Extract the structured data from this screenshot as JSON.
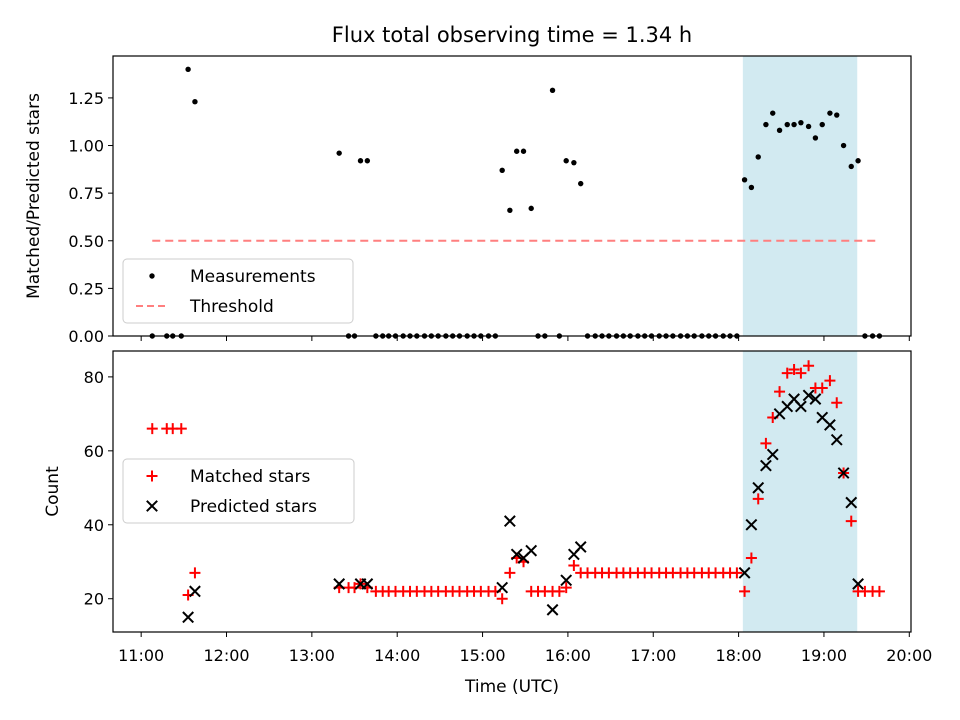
{
  "chart_data": {
    "type": "scatter",
    "title": "Flux total observing time = 1.34 h",
    "xlabel": "Time (UTC)",
    "x_unit": "decimal hours UTC",
    "x_ticks": [
      {
        "value": 11,
        "label": "11:00"
      },
      {
        "value": 12,
        "label": "12:00"
      },
      {
        "value": 13,
        "label": "13:00"
      },
      {
        "value": 14,
        "label": "14:00"
      },
      {
        "value": 15,
        "label": "15:00"
      },
      {
        "value": 16,
        "label": "16:00"
      },
      {
        "value": 17,
        "label": "17:00"
      },
      {
        "value": 18,
        "label": "18:00"
      },
      {
        "value": 19,
        "label": "19:00"
      },
      {
        "value": 20,
        "label": "20:00"
      }
    ],
    "xlim": [
      10.67,
      20.02
    ],
    "highlight_span": [
      18.05,
      19.39
    ],
    "highlight_color": "#add8e6",
    "panels": [
      {
        "ylabel": "Matched/Predicted stars",
        "ylim": [
          0,
          1.47
        ],
        "y_ticks": [
          {
            "value": 0,
            "label": "0.00"
          },
          {
            "value": 0.25,
            "label": "0.25"
          },
          {
            "value": 0.5,
            "label": "0.50"
          },
          {
            "value": 0.75,
            "label": "0.75"
          },
          {
            "value": 1.0,
            "label": "1.00"
          },
          {
            "value": 1.25,
            "label": "1.25"
          }
        ],
        "legend_position": "lower-left",
        "legend": [
          {
            "label": "Measurements",
            "marker": "dot",
            "color": "#000000"
          },
          {
            "label": "Threshold",
            "marker": "dash",
            "color": "#ff7f7f"
          }
        ],
        "threshold": {
          "name": "Threshold",
          "y": 0.5,
          "x_start": 11.13,
          "x_end": 19.62,
          "color": "#ff7f7f"
        },
        "series": [
          {
            "name": "Measurements",
            "marker": "dot",
            "color": "#000000",
            "points": [
              [
                11.13,
                0
              ],
              [
                11.3,
                0
              ],
              [
                11.37,
                0
              ],
              [
                11.47,
                0
              ],
              [
                11.55,
                1.4
              ],
              [
                11.63,
                1.23
              ],
              [
                13.32,
                0.96
              ],
              [
                13.43,
                0
              ],
              [
                13.5,
                0
              ],
              [
                13.57,
                0.92
              ],
              [
                13.65,
                0.92
              ],
              [
                13.75,
                0
              ],
              [
                13.83,
                0
              ],
              [
                13.9,
                0
              ],
              [
                13.98,
                0
              ],
              [
                14.07,
                0
              ],
              [
                14.15,
                0
              ],
              [
                14.23,
                0
              ],
              [
                14.32,
                0
              ],
              [
                14.4,
                0
              ],
              [
                14.48,
                0
              ],
              [
                14.57,
                0
              ],
              [
                14.65,
                0
              ],
              [
                14.73,
                0
              ],
              [
                14.82,
                0
              ],
              [
                14.9,
                0
              ],
              [
                14.98,
                0
              ],
              [
                15.07,
                0
              ],
              [
                15.15,
                0
              ],
              [
                15.23,
                0.87
              ],
              [
                15.32,
                0.66
              ],
              [
                15.4,
                0.97
              ],
              [
                15.48,
                0.97
              ],
              [
                15.57,
                0.67
              ],
              [
                15.65,
                0
              ],
              [
                15.73,
                0
              ],
              [
                15.82,
                1.29
              ],
              [
                15.9,
                0
              ],
              [
                15.98,
                0.92
              ],
              [
                16.07,
                0.91
              ],
              [
                16.15,
                0.8
              ],
              [
                16.23,
                0
              ],
              [
                16.32,
                0
              ],
              [
                16.4,
                0
              ],
              [
                16.48,
                0
              ],
              [
                16.57,
                0
              ],
              [
                16.65,
                0
              ],
              [
                16.73,
                0
              ],
              [
                16.82,
                0
              ],
              [
                16.9,
                0
              ],
              [
                16.98,
                0
              ],
              [
                17.07,
                0
              ],
              [
                17.15,
                0
              ],
              [
                17.23,
                0
              ],
              [
                17.32,
                0
              ],
              [
                17.4,
                0
              ],
              [
                17.48,
                0
              ],
              [
                17.57,
                0
              ],
              [
                17.65,
                0
              ],
              [
                17.73,
                0
              ],
              [
                17.82,
                0
              ],
              [
                17.9,
                0
              ],
              [
                17.98,
                0
              ],
              [
                18.07,
                0.82
              ],
              [
                18.15,
                0.78
              ],
              [
                18.23,
                0.94
              ],
              [
                18.32,
                1.11
              ],
              [
                18.4,
                1.17
              ],
              [
                18.48,
                1.08
              ],
              [
                18.57,
                1.11
              ],
              [
                18.65,
                1.11
              ],
              [
                18.73,
                1.12
              ],
              [
                18.82,
                1.1
              ],
              [
                18.9,
                1.04
              ],
              [
                18.98,
                1.11
              ],
              [
                19.07,
                1.17
              ],
              [
                19.15,
                1.16
              ],
              [
                19.23,
                1.0
              ],
              [
                19.32,
                0.89
              ],
              [
                19.4,
                0.92
              ],
              [
                19.48,
                0
              ],
              [
                19.57,
                0
              ],
              [
                19.65,
                0
              ]
            ]
          }
        ]
      },
      {
        "ylabel": "Count",
        "ylim": [
          11,
          87
        ],
        "y_ticks": [
          {
            "value": 20,
            "label": "20"
          },
          {
            "value": 40,
            "label": "40"
          },
          {
            "value": 60,
            "label": "60"
          },
          {
            "value": 80,
            "label": "80"
          }
        ],
        "legend_position": "center-left",
        "legend": [
          {
            "label": "Matched stars",
            "marker": "plus",
            "color": "#ff0000"
          },
          {
            "label": "Predicted stars",
            "marker": "x",
            "color": "#000000"
          }
        ],
        "series": [
          {
            "name": "Matched stars",
            "marker": "plus",
            "color": "#ff0000",
            "points": [
              [
                11.13,
                66
              ],
              [
                11.3,
                66
              ],
              [
                11.37,
                66
              ],
              [
                11.47,
                66
              ],
              [
                11.55,
                21
              ],
              [
                11.63,
                27
              ],
              [
                13.32,
                23
              ],
              [
                13.43,
                23
              ],
              [
                13.5,
                23
              ],
              [
                13.57,
                24
              ],
              [
                13.65,
                23
              ],
              [
                13.75,
                22
              ],
              [
                13.83,
                22
              ],
              [
                13.9,
                22
              ],
              [
                13.98,
                22
              ],
              [
                14.07,
                22
              ],
              [
                14.15,
                22
              ],
              [
                14.23,
                22
              ],
              [
                14.32,
                22
              ],
              [
                14.4,
                22
              ],
              [
                14.48,
                22
              ],
              [
                14.57,
                22
              ],
              [
                14.65,
                22
              ],
              [
                14.73,
                22
              ],
              [
                14.82,
                22
              ],
              [
                14.9,
                22
              ],
              [
                14.98,
                22
              ],
              [
                15.07,
                22
              ],
              [
                15.15,
                22
              ],
              [
                15.23,
                20
              ],
              [
                15.32,
                27
              ],
              [
                15.4,
                31
              ],
              [
                15.48,
                30
              ],
              [
                15.57,
                22
              ],
              [
                15.65,
                22
              ],
              [
                15.73,
                22
              ],
              [
                15.82,
                22
              ],
              [
                15.9,
                22
              ],
              [
                15.98,
                23
              ],
              [
                16.07,
                29
              ],
              [
                16.15,
                27
              ],
              [
                16.23,
                27
              ],
              [
                16.32,
                27
              ],
              [
                16.4,
                27
              ],
              [
                16.48,
                27
              ],
              [
                16.57,
                27
              ],
              [
                16.65,
                27
              ],
              [
                16.73,
                27
              ],
              [
                16.82,
                27
              ],
              [
                16.9,
                27
              ],
              [
                16.98,
                27
              ],
              [
                17.07,
                27
              ],
              [
                17.15,
                27
              ],
              [
                17.23,
                27
              ],
              [
                17.32,
                27
              ],
              [
                17.4,
                27
              ],
              [
                17.48,
                27
              ],
              [
                17.57,
                27
              ],
              [
                17.65,
                27
              ],
              [
                17.73,
                27
              ],
              [
                17.82,
                27
              ],
              [
                17.9,
                27
              ],
              [
                17.98,
                27
              ],
              [
                18.07,
                22
              ],
              [
                18.15,
                31
              ],
              [
                18.23,
                47
              ],
              [
                18.32,
                62
              ],
              [
                18.4,
                69
              ],
              [
                18.48,
                76
              ],
              [
                18.57,
                81
              ],
              [
                18.65,
                82
              ],
              [
                18.73,
                81
              ],
              [
                18.82,
                83
              ],
              [
                18.9,
                77
              ],
              [
                18.98,
                77
              ],
              [
                19.07,
                79
              ],
              [
                19.15,
                73
              ],
              [
                19.23,
                54
              ],
              [
                19.32,
                41
              ],
              [
                19.4,
                22
              ],
              [
                19.48,
                22
              ],
              [
                19.57,
                22
              ],
              [
                19.65,
                22
              ]
            ]
          },
          {
            "name": "Predicted stars",
            "marker": "x",
            "color": "#000000",
            "points": [
              [
                11.55,
                15
              ],
              [
                11.63,
                22
              ],
              [
                13.32,
                24
              ],
              [
                13.57,
                24
              ],
              [
                13.65,
                24
              ],
              [
                15.23,
                23
              ],
              [
                15.32,
                41
              ],
              [
                15.4,
                32
              ],
              [
                15.48,
                31
              ],
              [
                15.57,
                33
              ],
              [
                15.82,
                17
              ],
              [
                15.98,
                25
              ],
              [
                16.07,
                32
              ],
              [
                16.15,
                34
              ],
              [
                18.07,
                27
              ],
              [
                18.15,
                40
              ],
              [
                18.23,
                50
              ],
              [
                18.32,
                56
              ],
              [
                18.4,
                59
              ],
              [
                18.48,
                70
              ],
              [
                18.57,
                72
              ],
              [
                18.65,
                74
              ],
              [
                18.73,
                72
              ],
              [
                18.82,
                75
              ],
              [
                18.9,
                74
              ],
              [
                18.98,
                69
              ],
              [
                19.07,
                67
              ],
              [
                19.15,
                63
              ],
              [
                19.23,
                54
              ],
              [
                19.32,
                46
              ],
              [
                19.4,
                24
              ]
            ]
          }
        ]
      }
    ]
  }
}
